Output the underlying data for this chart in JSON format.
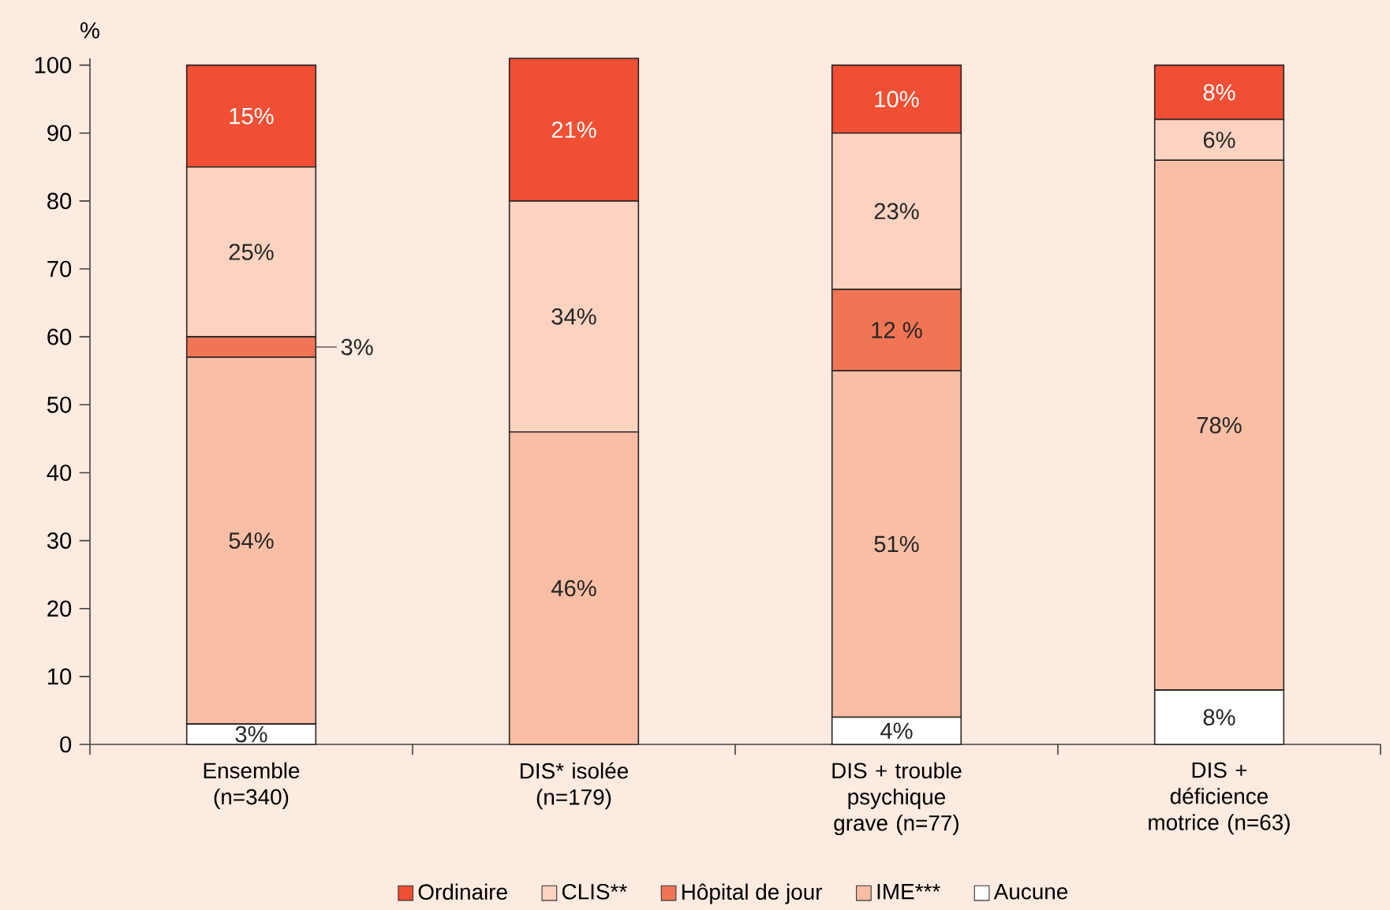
{
  "chart_data": {
    "type": "bar",
    "stacked": true,
    "ylabel": "%",
    "categories": [
      "Ensemble (n=340)",
      "DIS* isolée (n=179)",
      "DIS + trouble psychique grave (n=77)",
      "DIS + déficience motrice (n=63)"
    ],
    "series": [
      {
        "name": "Aucune",
        "color": "#ffffff",
        "values": [
          3,
          0,
          4,
          8
        ],
        "value_labels": [
          "3%",
          null,
          "4%",
          "8%"
        ]
      },
      {
        "name": "IME***",
        "color": "#f9bea5",
        "values": [
          54,
          46,
          51,
          78
        ],
        "value_labels": [
          "54%",
          "46%",
          "51%",
          "78%"
        ]
      },
      {
        "name": "Hôpital de jour",
        "color": "#f07554",
        "values": [
          3,
          0,
          12,
          0
        ],
        "value_labels": [
          "3%",
          null,
          "12 %",
          null
        ]
      },
      {
        "name": "CLIS**",
        "color": "#fcd2c0",
        "values": [
          25,
          34,
          23,
          6
        ],
        "value_labels": [
          "25%",
          "34%",
          "23%",
          "6%"
        ]
      },
      {
        "name": "Ordinaire",
        "color": "#f04f33",
        "values": [
          15,
          21,
          10,
          8
        ],
        "value_labels": [
          "15%",
          "21%",
          "10%",
          "8%"
        ]
      }
    ],
    "ylim": [
      0,
      101
    ],
    "yticks": [
      0,
      10,
      20,
      30,
      40,
      50,
      60,
      70,
      80,
      90,
      100
    ],
    "legend": "bottom",
    "grid": false
  }
}
